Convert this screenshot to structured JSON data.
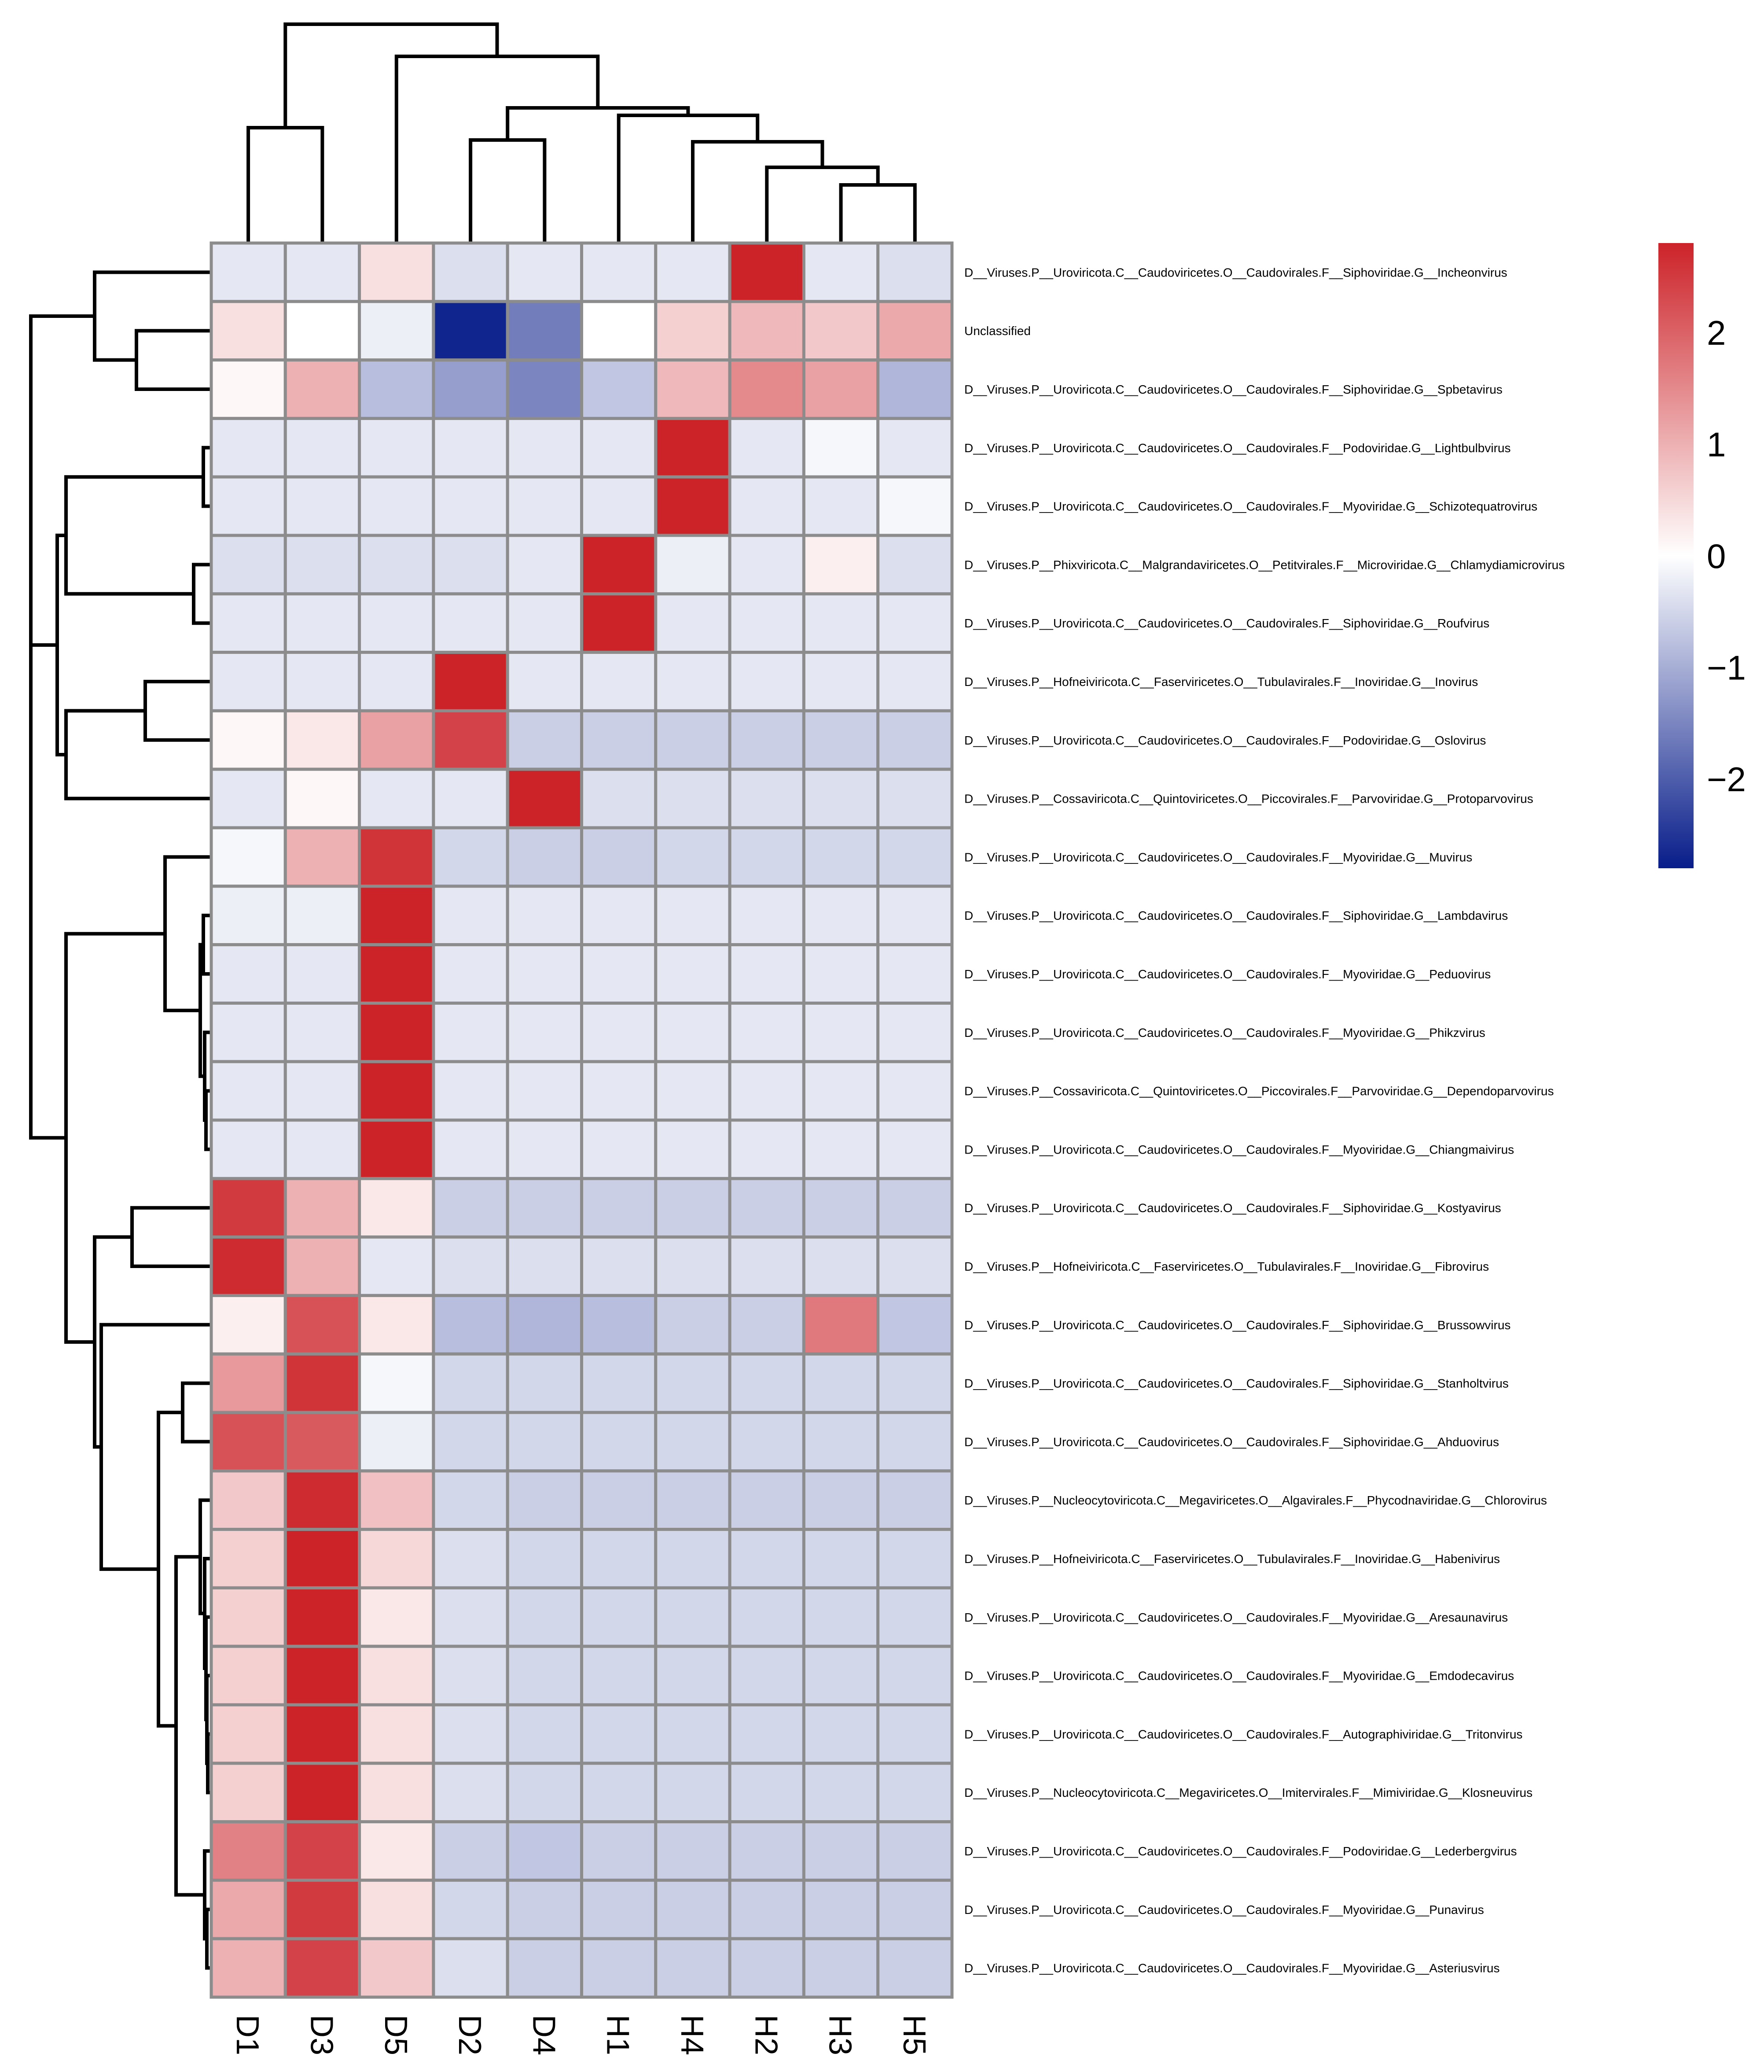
{
  "chart_data": {
    "type": "heatmap",
    "title": "",
    "columns": [
      "D1",
      "D3",
      "D5",
      "D2",
      "D4",
      "H1",
      "H4",
      "H2",
      "H3",
      "H5"
    ],
    "rows": [
      "D__Viruses.P__Uroviricota.C__Caudoviricetes.O__Caudovirales.F__Siphoviridae.G__Incheonvirus",
      "Unclassified",
      "D__Viruses.P__Uroviricota.C__Caudoviricetes.O__Caudovirales.F__Siphoviridae.G__Spbetavirus",
      "D__Viruses.P__Uroviricota.C__Caudoviricetes.O__Caudovirales.F__Podoviridae.G__Lightbulbvirus",
      "D__Viruses.P__Uroviricota.C__Caudoviricetes.O__Caudovirales.F__Myoviridae.G__Schizotequatrovirus",
      "D__Viruses.P__Phixviricota.C__Malgrandaviricetes.O__Petitvirales.F__Microviridae.G__Chlamydiamicrovirus",
      "D__Viruses.P__Uroviricota.C__Caudoviricetes.O__Caudovirales.F__Siphoviridae.G__Roufvirus",
      "D__Viruses.P__Hofneiviricota.C__Faserviricetes.O__Tubulavirales.F__Inoviridae.G__Inovirus",
      "D__Viruses.P__Uroviricota.C__Caudoviricetes.O__Caudovirales.F__Podoviridae.G__Oslovirus",
      "D__Viruses.P__Cossaviricota.C__Quintoviricetes.O__Piccovirales.F__Parvoviridae.G__Protoparvovirus",
      "D__Viruses.P__Uroviricota.C__Caudoviricetes.O__Caudovirales.F__Myoviridae.G__Muvirus",
      "D__Viruses.P__Uroviricota.C__Caudoviricetes.O__Caudovirales.F__Siphoviridae.G__Lambdavirus",
      "D__Viruses.P__Uroviricota.C__Caudoviricetes.O__Caudovirales.F__Myoviridae.G__Peduovirus",
      "D__Viruses.P__Uroviricota.C__Caudoviricetes.O__Caudovirales.F__Myoviridae.G__Phikzvirus",
      "D__Viruses.P__Cossaviricota.C__Quintoviricetes.O__Piccovirales.F__Parvoviridae.G__Dependoparvovirus",
      "D__Viruses.P__Uroviricota.C__Caudoviricetes.O__Caudovirales.F__Myoviridae.G__Chiangmaivirus",
      "D__Viruses.P__Uroviricota.C__Caudoviricetes.O__Caudovirales.F__Siphoviridae.G__Kostyavirus",
      "D__Viruses.P__Hofneiviricota.C__Faserviricetes.O__Tubulavirales.F__Inoviridae.G__Fibrovirus",
      "D__Viruses.P__Uroviricota.C__Caudoviricetes.O__Caudovirales.F__Siphoviridae.G__Brussowvirus",
      "D__Viruses.P__Uroviricota.C__Caudoviricetes.O__Caudovirales.F__Siphoviridae.G__Stanholtvirus",
      "D__Viruses.P__Uroviricota.C__Caudoviricetes.O__Caudovirales.F__Siphoviridae.G__Ahduovirus",
      "D__Viruses.P__Nucleocytoviricota.C__Megaviricetes.O__Algavirales.F__Phycodnaviridae.G__Chlorovirus",
      "D__Viruses.P__Hofneiviricota.C__Faserviricetes.O__Tubulavirales.F__Inoviridae.G__Habenivirus",
      "D__Viruses.P__Uroviricota.C__Caudoviricetes.O__Caudovirales.F__Myoviridae.G__Aresaunavirus",
      "D__Viruses.P__Uroviricota.C__Caudoviricetes.O__Caudovirales.F__Myoviridae.G__Emdodecavirus",
      "D__Viruses.P__Uroviricota.C__Caudoviricetes.O__Caudovirales.F__Autographiviridae.G__Tritonvirus",
      "D__Viruses.P__Nucleocytoviricota.C__Megaviricetes.O__Imitervirales.F__Mimiviridae.G__Klosneuvirus",
      "D__Viruses.P__Uroviricota.C__Caudoviricetes.O__Caudovirales.F__Podoviridae.G__Lederbergvirus",
      "D__Viruses.P__Uroviricota.C__Caudoviricetes.O__Caudovirales.F__Myoviridae.G__Punavirus",
      "D__Viruses.P__Uroviricota.C__Caudoviricetes.O__Caudovirales.F__Myoviridae.G__Asteriusvirus"
    ],
    "values": [
      [
        -0.3,
        -0.3,
        0.4,
        -0.4,
        -0.3,
        -0.3,
        -0.3,
        2.8,
        -0.3,
        -0.4
      ],
      [
        0.4,
        0.0,
        -0.2,
        -2.7,
        -1.6,
        0.0,
        0.6,
        0.9,
        0.7,
        1.1
      ],
      [
        0.1,
        1.0,
        -0.8,
        -1.2,
        -1.5,
        -0.7,
        0.9,
        1.5,
        1.2,
        -0.9
      ],
      [
        -0.3,
        -0.3,
        -0.3,
        -0.3,
        -0.3,
        -0.3,
        2.8,
        -0.3,
        -0.1,
        -0.3
      ],
      [
        -0.3,
        -0.3,
        -0.3,
        -0.3,
        -0.3,
        -0.3,
        2.8,
        -0.3,
        -0.3,
        -0.1
      ],
      [
        -0.4,
        -0.4,
        -0.4,
        -0.4,
        -0.3,
        2.8,
        -0.2,
        -0.3,
        0.2,
        -0.4
      ],
      [
        -0.3,
        -0.3,
        -0.3,
        -0.3,
        -0.3,
        2.8,
        -0.3,
        -0.3,
        -0.3,
        -0.3
      ],
      [
        -0.3,
        -0.3,
        -0.3,
        2.8,
        -0.3,
        -0.3,
        -0.3,
        -0.3,
        -0.3,
        -0.3
      ],
      [
        0.1,
        0.3,
        1.2,
        2.4,
        -0.6,
        -0.6,
        -0.6,
        -0.6,
        -0.6,
        -0.6
      ],
      [
        -0.3,
        0.1,
        -0.3,
        -0.3,
        2.8,
        -0.4,
        -0.4,
        -0.4,
        -0.4,
        -0.4
      ],
      [
        -0.1,
        1.0,
        2.6,
        -0.5,
        -0.6,
        -0.6,
        -0.5,
        -0.5,
        -0.5,
        -0.5
      ],
      [
        -0.2,
        -0.2,
        2.8,
        -0.3,
        -0.3,
        -0.3,
        -0.3,
        -0.3,
        -0.3,
        -0.3
      ],
      [
        -0.3,
        -0.3,
        2.8,
        -0.3,
        -0.3,
        -0.3,
        -0.3,
        -0.3,
        -0.3,
        -0.3
      ],
      [
        -0.3,
        -0.3,
        2.8,
        -0.3,
        -0.3,
        -0.3,
        -0.3,
        -0.3,
        -0.3,
        -0.3
      ],
      [
        -0.3,
        -0.3,
        2.8,
        -0.3,
        -0.3,
        -0.3,
        -0.3,
        -0.3,
        -0.3,
        -0.3
      ],
      [
        -0.3,
        -0.3,
        2.8,
        -0.3,
        -0.3,
        -0.3,
        -0.3,
        -0.3,
        -0.3,
        -0.3
      ],
      [
        2.5,
        1.0,
        0.3,
        -0.6,
        -0.6,
        -0.6,
        -0.6,
        -0.6,
        -0.6,
        -0.6
      ],
      [
        2.7,
        1.0,
        -0.3,
        -0.4,
        -0.4,
        -0.4,
        -0.4,
        -0.4,
        -0.4,
        -0.4
      ],
      [
        0.2,
        2.2,
        0.3,
        -0.8,
        -0.9,
        -0.8,
        -0.6,
        -0.6,
        1.7,
        -0.7
      ],
      [
        1.3,
        2.6,
        -0.1,
        -0.5,
        -0.5,
        -0.5,
        -0.5,
        -0.5,
        -0.5,
        -0.5
      ],
      [
        2.2,
        2.1,
        -0.2,
        -0.5,
        -0.5,
        -0.5,
        -0.5,
        -0.5,
        -0.5,
        -0.5
      ],
      [
        0.7,
        2.7,
        0.8,
        -0.5,
        -0.6,
        -0.6,
        -0.6,
        -0.6,
        -0.6,
        -0.6
      ],
      [
        0.6,
        2.8,
        0.5,
        -0.4,
        -0.5,
        -0.5,
        -0.5,
        -0.5,
        -0.5,
        -0.5
      ],
      [
        0.6,
        2.8,
        0.3,
        -0.4,
        -0.5,
        -0.5,
        -0.5,
        -0.5,
        -0.5,
        -0.5
      ],
      [
        0.6,
        2.8,
        0.4,
        -0.4,
        -0.5,
        -0.5,
        -0.5,
        -0.5,
        -0.5,
        -0.5
      ],
      [
        0.6,
        2.8,
        0.4,
        -0.4,
        -0.5,
        -0.5,
        -0.5,
        -0.5,
        -0.5,
        -0.5
      ],
      [
        0.6,
        2.8,
        0.4,
        -0.4,
        -0.5,
        -0.5,
        -0.5,
        -0.5,
        -0.5,
        -0.5
      ],
      [
        1.6,
        2.4,
        0.3,
        -0.6,
        -0.7,
        -0.6,
        -0.6,
        -0.6,
        -0.6,
        -0.6
      ],
      [
        1.1,
        2.5,
        0.4,
        -0.5,
        -0.6,
        -0.6,
        -0.6,
        -0.6,
        -0.6,
        -0.6
      ],
      [
        1.0,
        2.4,
        0.7,
        -0.4,
        -0.6,
        -0.6,
        -0.6,
        -0.6,
        -0.6,
        -0.6
      ]
    ],
    "color_scale": {
      "min": -2.8,
      "max": 2.8,
      "low_color": "#081d8a",
      "mid_color": "#ffffff",
      "high_color": "#cc2329"
    },
    "colorbar_ticks": [
      {
        "value": 2,
        "label": "2"
      },
      {
        "value": 1,
        "label": "1"
      },
      {
        "value": 0,
        "label": "0"
      },
      {
        "value": -1,
        "label": "−1"
      },
      {
        "value": -2,
        "label": "−2"
      }
    ],
    "row_dendrogram": [
      "Incheonvirus-(Unclassified-Spbetavirus)",
      "((Lightbulbvirus-Schizotequatrovirus)-(Chlamydiamicrovirus-Roufvirus))",
      "(Inovirus-Oslovirus)-Protoparvovirus",
      "Muvirus-((Lambdavirus-Peduovirus)-(Phikzvirus-(Dependoparvovirus-Chiangmaivirus)))",
      "(Kostyavirus-Fibrovirus)-(Brussowvirus-((Stanholtvirus-Ahduovirus)-(...)))"
    ],
    "column_dendrogram": "((D1-D3)-(D5-((D2-D4)-(H1-(H4-(H2-(H3-H5)))))))",
    "grid_color": "#8c8c8c"
  }
}
